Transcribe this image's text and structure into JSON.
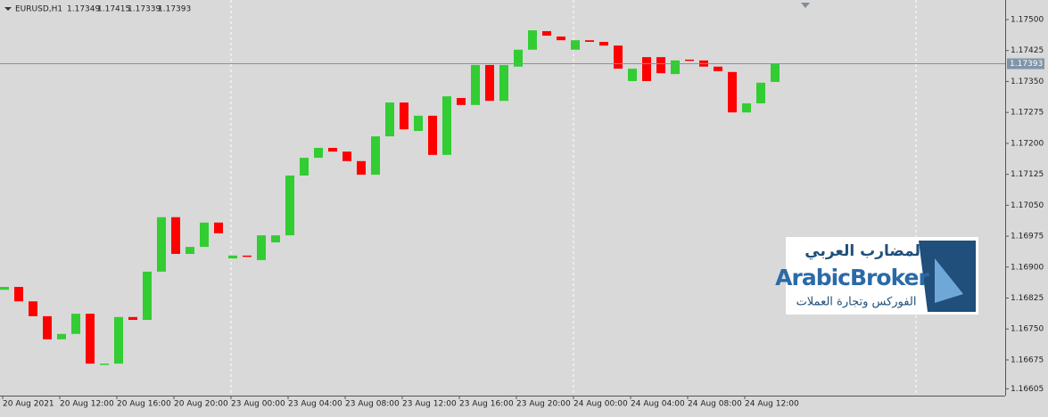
{
  "chart_data": {
    "type": "candlestick",
    "symbol": "EURUSD,H1",
    "header_ohlc": [
      1.17349,
      1.17415,
      1.17339,
      1.17393
    ],
    "current_price": 1.17393,
    "up_color": "#32cd32",
    "down_color": "#ff0000",
    "price_line_color": "#7f95a8",
    "categories": [
      "20 Aug 2021",
      null,
      null,
      null,
      "20 Aug 12:00",
      null,
      null,
      null,
      "20 Aug 16:00",
      null,
      null,
      null,
      "20 Aug 20:00",
      null,
      null,
      null,
      "23 Aug 00:00",
      null,
      null,
      null,
      "23 Aug 04:00",
      null,
      null,
      null,
      "23 Aug 08:00",
      null,
      null,
      null,
      "23 Aug 12:00",
      null,
      null,
      null,
      "23 Aug 16:00",
      null,
      null,
      null,
      "23 Aug 20:00",
      null,
      null,
      null,
      "24 Aug 00:00",
      null,
      null,
      null,
      "24 Aug 04:00",
      null,
      null,
      null,
      "24 Aug 08:00",
      null,
      null,
      null,
      "24 Aug 12:00",
      null,
      null
    ],
    "open": [
      1.16845,
      1.16852,
      1.16817,
      1.16781,
      1.16725,
      1.16738,
      1.16787,
      1.16666,
      1.16666,
      1.16779,
      1.16772,
      1.16889,
      1.17021,
      1.16932,
      1.16949,
      1.17008,
      1.16921,
      1.16928,
      1.16917,
      1.1696,
      1.16977,
      1.17122,
      1.17165,
      1.17189,
      1.1718,
      1.17157,
      1.17124,
      1.17217,
      1.17299,
      1.1723,
      1.17267,
      1.17172,
      1.1731,
      1.17293,
      1.1739,
      1.17303,
      1.17386,
      1.17427,
      1.17472,
      1.17459,
      1.17427,
      1.1745,
      1.17446,
      1.17437,
      1.17351,
      1.17409,
      1.17409,
      1.17368,
      1.17403,
      1.17401,
      1.17386,
      1.17373,
      1.17275,
      1.17297,
      1.17349
    ],
    "close": [
      1.16852,
      1.16817,
      1.16781,
      1.16725,
      1.16738,
      1.16787,
      1.16666,
      1.16666,
      1.16779,
      1.16772,
      1.16889,
      1.17021,
      1.16932,
      1.16949,
      1.17008,
      1.16982,
      1.16928,
      1.16925,
      1.16977,
      1.16977,
      1.17122,
      1.17165,
      1.17189,
      1.1718,
      1.17157,
      1.17124,
      1.17217,
      1.17299,
      1.17234,
      1.17267,
      1.17172,
      1.17314,
      1.17293,
      1.1739,
      1.17303,
      1.1739,
      1.17427,
      1.17474,
      1.17461,
      1.1745,
      1.1745,
      1.17446,
      1.17437,
      1.17381,
      1.17381,
      1.17351,
      1.1737,
      1.17401,
      1.17401,
      1.17386,
      1.17375,
      1.17275,
      1.17297,
      1.17347,
      1.17393
    ],
    "ylim": [
      1.165885,
      1.175475
    ],
    "yticks": [
      {
        "value": 1.175,
        "label": "1.17500"
      },
      {
        "value": 1.17425,
        "label": "1.17425"
      },
      {
        "value": 1.1735,
        "label": "1.17350"
      },
      {
        "value": 1.17275,
        "label": "1.17275"
      },
      {
        "value": 1.172,
        "label": "1.17200"
      },
      {
        "value": 1.17125,
        "label": "1.17125"
      },
      {
        "value": 1.1705,
        "label": "1.17050"
      },
      {
        "value": 1.16975,
        "label": "1.16975"
      },
      {
        "value": 1.169,
        "label": "1.16900"
      },
      {
        "value": 1.16825,
        "label": "1.16825"
      },
      {
        "value": 1.1675,
        "label": "1.16750"
      },
      {
        "value": 1.16675,
        "label": "1.16675"
      },
      {
        "value": 1.16605,
        "label": "1.16605"
      }
    ],
    "watermark": {
      "arabic_title": "المضارب العربي",
      "brand": "ArabicBroker",
      "arabic_subtitle": "الفوركس وتجارة العملات"
    }
  }
}
